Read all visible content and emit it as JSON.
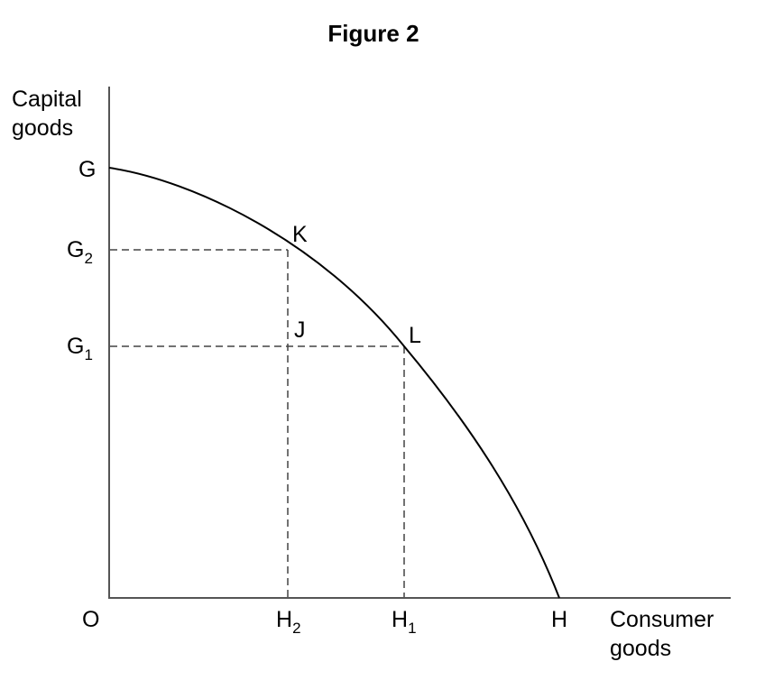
{
  "title": "Figure 2",
  "y_axis_label": [
    "Capital",
    "goods"
  ],
  "x_axis_label": [
    "Consumer",
    "goods"
  ],
  "origin_label": "O",
  "y_ticks": [
    {
      "letter": "G",
      "sub": ""
    },
    {
      "letter": "G",
      "sub": "2"
    },
    {
      "letter": "G",
      "sub": "1"
    }
  ],
  "x_ticks": [
    {
      "letter": "H",
      "sub": "2"
    },
    {
      "letter": "H",
      "sub": "1"
    },
    {
      "letter": "H",
      "sub": ""
    }
  ],
  "points": {
    "K": "K",
    "J": "J",
    "L": "L"
  },
  "colors": {
    "line": "#000000",
    "axis": "#555555",
    "dash": "#444444"
  }
}
